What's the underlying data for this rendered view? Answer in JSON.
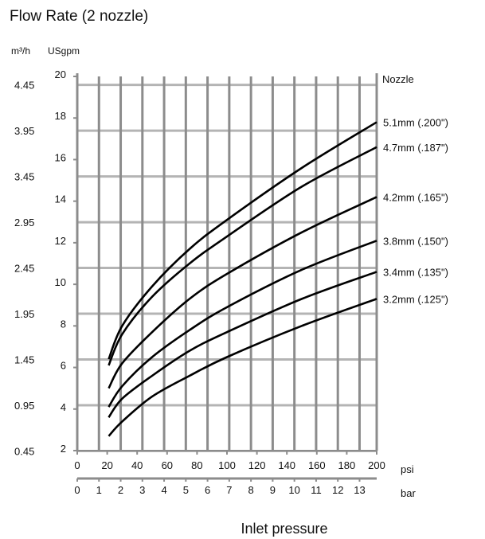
{
  "chart_data": {
    "type": "line",
    "title": "Flow Rate (2 nozzle)",
    "y_left_label": "m³/h",
    "y_label": "USgpm",
    "x_label": "Inlet pressure",
    "x_unit_psi": "psi",
    "x_unit_bar": "bar",
    "legend_title": "Nozzle",
    "xlim": [
      0,
      200
    ],
    "ylim": [
      2,
      20
    ],
    "x_ticks": [
      0,
      20,
      40,
      60,
      80,
      100,
      120,
      140,
      160,
      180,
      200
    ],
    "bar_ticks": [
      0,
      1,
      2,
      3,
      4,
      5,
      6,
      7,
      8,
      9,
      10,
      11,
      12,
      13
    ],
    "y_ticks": [
      2,
      4,
      6,
      8,
      10,
      12,
      14,
      16,
      18,
      20
    ],
    "m3h_ticks": [
      "0.45",
      "0.95",
      "1.45",
      "1.95",
      "2.45",
      "2.95",
      "3.45",
      "3.95",
      "4.45"
    ],
    "grid": true,
    "colors": {
      "grid": "#8c8c8c",
      "hgrid": "#b4b4b4",
      "line": "#000000"
    },
    "x": [
      21,
      30,
      50,
      75,
      100,
      150,
      200
    ],
    "series": [
      {
        "name": "5.1mm  (.200\")",
        "values": [
          6.4,
          8.0,
          9.9,
          11.7,
          13.1,
          15.6,
          17.8
        ]
      },
      {
        "name": "4.7mm  (.187\")",
        "values": [
          6.1,
          7.6,
          9.4,
          11.0,
          12.3,
          14.7,
          16.6
        ]
      },
      {
        "name": "4.2mm  (.165\")",
        "values": [
          5.0,
          6.2,
          7.7,
          9.3,
          10.5,
          12.5,
          14.2
        ]
      },
      {
        "name": "3.8mm  (.150\")",
        "values": [
          4.1,
          5.1,
          6.5,
          7.8,
          8.9,
          10.7,
          12.1
        ]
      },
      {
        "name": "3.4mm  (.135\")",
        "values": [
          3.6,
          4.5,
          5.6,
          6.8,
          7.7,
          9.3,
          10.6
        ]
      },
      {
        "name": "3.2mm  (.125\")",
        "values": [
          2.7,
          3.4,
          4.6,
          5.6,
          6.5,
          8.0,
          9.3
        ]
      }
    ]
  }
}
